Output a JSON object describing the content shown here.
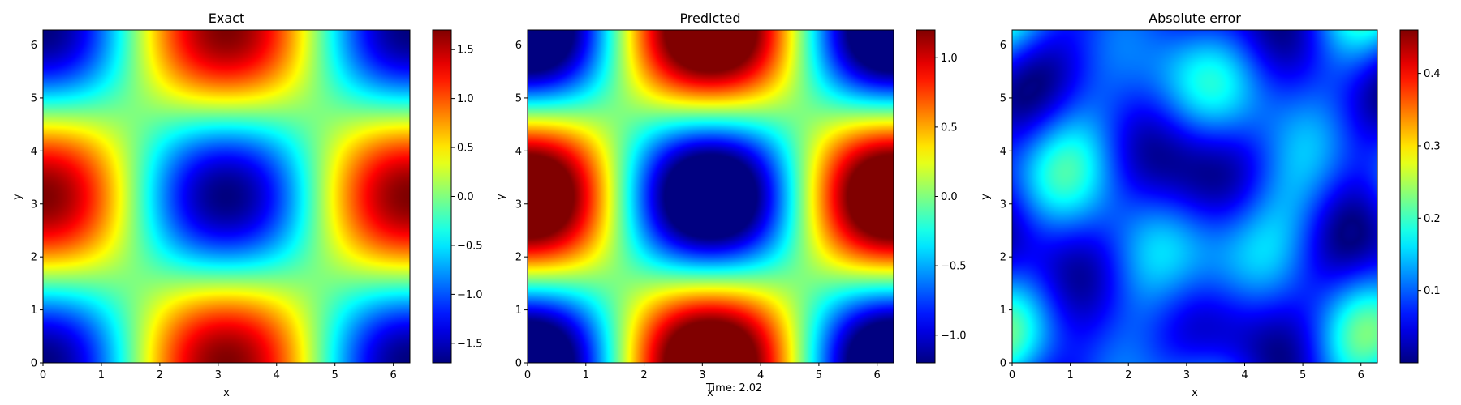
{
  "caption": "Time: 2.02",
  "colormap": "jet",
  "colormap_stops": [
    "#00007f",
    "#0000ff",
    "#007fff",
    "#00ffff",
    "#7fff7f",
    "#ffff00",
    "#ff7f00",
    "#ff0000",
    "#7f0000"
  ],
  "chart_data": [
    {
      "type": "heatmap",
      "title": "Exact",
      "xlabel": "x",
      "ylabel": "y",
      "xlim": [
        0,
        6.283
      ],
      "ylim": [
        0,
        6.283
      ],
      "xticks": [
        "0",
        "1",
        "2",
        "3",
        "4",
        "5",
        "6"
      ],
      "yticks": [
        "0",
        "1",
        "2",
        "3",
        "4",
        "5",
        "6"
      ],
      "field": "u(x,y) = -1.7*cos(x)*cos(y)",
      "amplitude": 1.7,
      "clim": [
        -1.7,
        1.7
      ],
      "colorbar_ticks": [
        -1.5,
        -1.0,
        -0.5,
        0.0,
        0.5,
        1.0,
        1.5
      ],
      "colorbar_labels": [
        "−1.5",
        "−1.0",
        "−0.5",
        "0.0",
        "0.5",
        "1.0",
        "1.5"
      ]
    },
    {
      "type": "heatmap",
      "title": "Predicted",
      "xlabel": "x",
      "ylabel": "y",
      "xlim": [
        0,
        6.283
      ],
      "ylim": [
        0,
        6.283
      ],
      "xticks": [
        "0",
        "1",
        "2",
        "3",
        "4",
        "5",
        "6"
      ],
      "yticks": [
        "0",
        "1",
        "2",
        "3",
        "4",
        "5",
        "6"
      ],
      "field": "u(x,y) = -1.7*cos(x)*cos(y), clipped to color limits",
      "amplitude": 1.7,
      "clim": [
        -1.2,
        1.2
      ],
      "colorbar_ticks": [
        -1.0,
        -0.5,
        0.0,
        0.5,
        1.0
      ],
      "colorbar_labels": [
        "−1.0",
        "−0.5",
        "0.0",
        "0.5",
        "1.0"
      ]
    },
    {
      "type": "heatmap",
      "title": "Absolute error",
      "xlabel": "x",
      "ylabel": "y",
      "xlim": [
        0,
        6.283
      ],
      "ylim": [
        0,
        6.283
      ],
      "xticks": [
        "0",
        "1",
        "2",
        "3",
        "4",
        "5",
        "6"
      ],
      "yticks": [
        "0",
        "1",
        "2",
        "3",
        "4",
        "5",
        "6"
      ],
      "field": "absolute difference, max about 0.45",
      "clim": [
        0.0,
        0.46
      ],
      "colorbar_ticks": [
        0.1,
        0.2,
        0.3,
        0.4
      ],
      "colorbar_labels": [
        "0.1",
        "0.2",
        "0.3",
        "0.4"
      ]
    }
  ]
}
